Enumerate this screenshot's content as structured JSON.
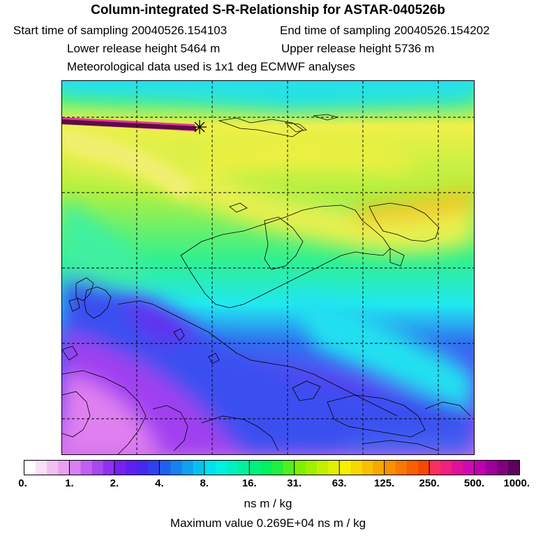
{
  "header": {
    "title": "Column-integrated S-R-Relationship for ASTAR-040526b",
    "start_time": "Start time of sampling 20040526.154103",
    "end_time": "End time of sampling 20040526.154202",
    "lower_height": "Lower release height 5464 m",
    "upper_height": "Upper release height 5736 m",
    "met_data": "Meteorological data used is 1x1 deg ECMWF analyses"
  },
  "map": {
    "field_colors": {
      "low": "#e070e8",
      "blue": "#3050f0",
      "cyan": "#20e8f0",
      "green": "#30f088",
      "yellow": "#f0f048",
      "orange": "#f0b000",
      "track": "#5a0e44"
    }
  },
  "colorbar": {
    "colors": [
      "#ffffff",
      "#f8e0f8",
      "#f0c0f0",
      "#e8a0f0",
      "#d880f0",
      "#c060f0",
      "#a848f0",
      "#9030f0",
      "#7820f0",
      "#6020f0",
      "#4828f0",
      "#3040f0",
      "#2060f0",
      "#1880f0",
      "#10a0f0",
      "#08c0f0",
      "#00e0f0",
      "#00f0e0",
      "#00f0c0",
      "#00f0a0",
      "#00f080",
      "#00f060",
      "#20f040",
      "#50f020",
      "#80f000",
      "#a0f000",
      "#c0f000",
      "#e0f000",
      "#f8f000",
      "#f8d800",
      "#f8c000",
      "#f8a800",
      "#f89000",
      "#f87800",
      "#f86000",
      "#f84800",
      "#f83060",
      "#f02080",
      "#e0109a",
      "#d008b0",
      "#c000b0",
      "#a0009a",
      "#800080",
      "#600060"
    ],
    "ticks": [
      "0.",
      "1.",
      "2.",
      "4.",
      "8.",
      "16.",
      "31.",
      "63.",
      "125.",
      "250.",
      "500.",
      "1000."
    ],
    "units": "ns m / kg",
    "max_value": "Maximum value  0.269E+04 ns m / kg"
  }
}
